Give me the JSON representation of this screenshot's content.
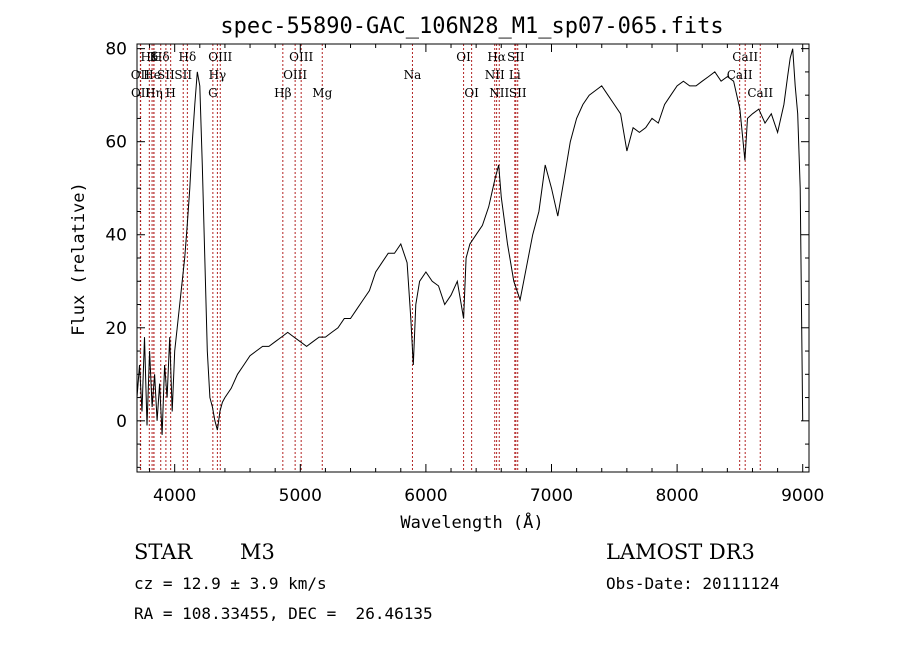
{
  "chart_data": {
    "type": "line",
    "title": "spec-55890-GAC_106N28_M1_sp07-065.fits",
    "xlabel": "Wavelength (Å)",
    "ylabel": "Flux (relative)",
    "xlim": [
      3700,
      9050
    ],
    "ylim": [
      -11,
      81
    ],
    "xticks": [
      4000,
      5000,
      6000,
      7000,
      8000,
      9000
    ],
    "yticks": [
      0,
      20,
      40,
      60,
      80
    ],
    "grid": false,
    "series": [
      {
        "name": "flux",
        "x": [
          3700,
          3720,
          3740,
          3760,
          3780,
          3800,
          3820,
          3840,
          3860,
          3880,
          3900,
          3920,
          3940,
          3960,
          3980,
          4000,
          4020,
          4040,
          4060,
          4080,
          4100,
          4120,
          4140,
          4160,
          4180,
          4200,
          4220,
          4240,
          4260,
          4280,
          4300,
          4320,
          4340,
          4360,
          4380,
          4400,
          4450,
          4500,
          4550,
          4600,
          4650,
          4700,
          4750,
          4800,
          4850,
          4900,
          4950,
          5000,
          5050,
          5100,
          5150,
          5200,
          5250,
          5300,
          5350,
          5400,
          5450,
          5500,
          5550,
          5600,
          5650,
          5700,
          5750,
          5800,
          5850,
          5880,
          5900,
          5920,
          5950,
          6000,
          6050,
          6100,
          6150,
          6200,
          6250,
          6300,
          6320,
          6350,
          6400,
          6450,
          6500,
          6550,
          6580,
          6600,
          6650,
          6700,
          6750,
          6800,
          6850,
          6900,
          6950,
          7000,
          7050,
          7100,
          7150,
          7200,
          7250,
          7300,
          7350,
          7400,
          7450,
          7500,
          7550,
          7600,
          7650,
          7700,
          7750,
          7800,
          7850,
          7900,
          7950,
          8000,
          8050,
          8100,
          8150,
          8200,
          8250,
          8300,
          8350,
          8400,
          8450,
          8500,
          8540,
          8560,
          8600,
          8650,
          8700,
          8750,
          8800,
          8850,
          8880,
          8900,
          8920,
          8940,
          8960,
          8980,
          9000
        ],
        "y": [
          5,
          12,
          2,
          18,
          -1,
          15,
          3,
          10,
          0,
          8,
          -3,
          12,
          5,
          18,
          2,
          15,
          20,
          25,
          30,
          35,
          42,
          50,
          60,
          68,
          75,
          72,
          55,
          35,
          15,
          5,
          3,
          0,
          -2,
          2,
          4,
          5,
          7,
          10,
          12,
          14,
          15,
          16,
          16,
          17,
          18,
          19,
          18,
          17,
          16,
          17,
          18,
          18,
          19,
          20,
          22,
          22,
          24,
          26,
          28,
          32,
          34,
          36,
          36,
          38,
          34,
          22,
          12,
          25,
          30,
          32,
          30,
          29,
          25,
          27,
          30,
          22,
          35,
          38,
          40,
          42,
          46,
          52,
          55,
          48,
          38,
          30,
          26,
          33,
          40,
          45,
          55,
          50,
          44,
          52,
          60,
          65,
          68,
          70,
          71,
          72,
          70,
          68,
          66,
          58,
          63,
          62,
          63,
          65,
          64,
          68,
          70,
          72,
          73,
          72,
          72,
          73,
          74,
          75,
          73,
          74,
          73,
          67,
          56,
          65,
          66,
          67,
          64,
          66,
          62,
          68,
          74,
          78,
          80,
          72,
          66,
          50,
          0
        ]
      }
    ],
    "lines": [
      {
        "label": "Hδ",
        "wl": 3798,
        "row": 1
      },
      {
        "label": "OII",
        "wl": 3727,
        "row": 2
      },
      {
        "label": "OII",
        "wl": 3729,
        "row": 3
      },
      {
        "label": "K",
        "wl": 3834,
        "row": 1
      },
      {
        "label": "He",
        "wl": 3820,
        "row": 2
      },
      {
        "label": "Hη",
        "wl": 3835,
        "row": 3
      },
      {
        "label": "Hδ",
        "wl": 3889,
        "row": 1
      },
      {
        "label": "SII",
        "wl": 3930,
        "row": 2
      },
      {
        "label": "H",
        "wl": 3968,
        "row": 3
      },
      {
        "label": "Hδ",
        "wl": 4101,
        "row": 1
      },
      {
        "label": "SII",
        "wl": 4068,
        "row": 2
      },
      {
        "label": "OIII",
        "wl": 4363,
        "row": 1
      },
      {
        "label": "Hγ",
        "wl": 4340,
        "row": 2
      },
      {
        "label": "G",
        "wl": 4304,
        "row": 3
      },
      {
        "label": "OIII",
        "wl": 5007,
        "row": 1
      },
      {
        "label": "OIII",
        "wl": 4959,
        "row": 2
      },
      {
        "label": "Hβ",
        "wl": 4861,
        "row": 3
      },
      {
        "label": "Mg",
        "wl": 5175,
        "row": 3
      },
      {
        "label": "Na",
        "wl": 5893,
        "row": 2
      },
      {
        "label": "OI",
        "wl": 6300,
        "row": 1
      },
      {
        "label": "OI",
        "wl": 6364,
        "row": 3
      },
      {
        "label": "Hα",
        "wl": 6563,
        "row": 1
      },
      {
        "label": "SII",
        "wl": 6716,
        "row": 1
      },
      {
        "label": "NII",
        "wl": 6548,
        "row": 2
      },
      {
        "label": "Li",
        "wl": 6708,
        "row": 2
      },
      {
        "label": "NII",
        "wl": 6584,
        "row": 3
      },
      {
        "label": "SII",
        "wl": 6731,
        "row": 3
      },
      {
        "label": "CaII",
        "wl": 8542,
        "row": 1
      },
      {
        "label": "CaII",
        "wl": 8498,
        "row": 2
      },
      {
        "label": "CaII",
        "wl": 8662,
        "row": 3
      }
    ]
  },
  "info": {
    "object_class": "STAR",
    "subclass": "M3",
    "survey": "LAMOST DR3",
    "redshift": "cz = 12.9 ± 3.9 km/s",
    "obs_date": "Obs-Date: 20111124",
    "coords": "RA = 108.33455, DEC =  26.46135"
  },
  "colors": {
    "line_marker": "#b22222",
    "spectrum": "#000000"
  }
}
